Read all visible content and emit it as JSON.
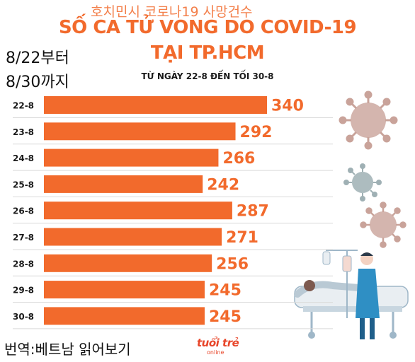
{
  "overlay_title_kr": "호치민시 코로나19 사망건수",
  "date_from_kr": "8/22부터",
  "date_to_kr": "8/30까지",
  "footer_kr": "번역:베트남 읽어보기",
  "logo": {
    "main": "tuổi trẻ",
    "sub": "online"
  },
  "colors": {
    "bar": "#f26a2c",
    "title": "#f26a2c",
    "virus": "#c9a39a",
    "virus_alt": "#9fb0b4",
    "gridline": "#d9d9d9"
  },
  "chart_data": {
    "type": "bar",
    "orientation": "horizontal",
    "title": "SỐ CA TỬ VONG DO COVID-19",
    "title_line2": "TẠI TP.HCM",
    "subtitle": "TỪ NGÀY 22-8 ĐẾN TỐI 30-8",
    "categories": [
      "22-8",
      "23-8",
      "24-8",
      "25-8",
      "26-8",
      "27-8",
      "28-8",
      "29-8",
      "30-8"
    ],
    "values": [
      340,
      292,
      266,
      242,
      287,
      271,
      256,
      245,
      245
    ],
    "xlim": [
      0,
      340
    ],
    "grid": false,
    "data_labels": true
  }
}
